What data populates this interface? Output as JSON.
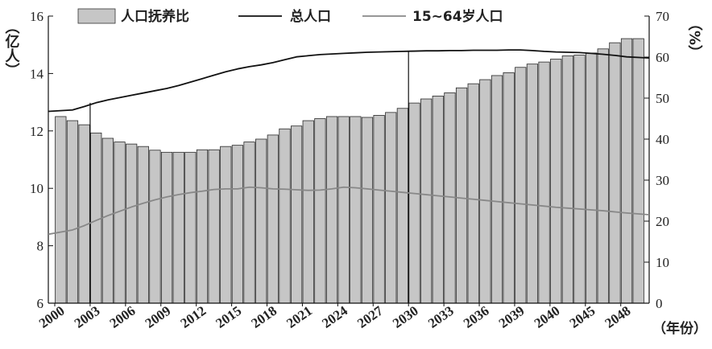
{
  "chart_data": {
    "type": "bar+line",
    "x": [
      2000,
      2001,
      2002,
      2003,
      2004,
      2005,
      2006,
      2007,
      2008,
      2009,
      2010,
      2011,
      2012,
      2013,
      2014,
      2015,
      2016,
      2017,
      2018,
      2019,
      2020,
      2021,
      2022,
      2023,
      2024,
      2025,
      2026,
      2027,
      2028,
      2029,
      2030,
      2031,
      2032,
      2033,
      2034,
      2035,
      2036,
      2037,
      2038,
      2039,
      2040,
      2041,
      2042,
      2043,
      2044,
      2045,
      2046,
      2047,
      2048,
      2049
    ],
    "x_tick_labels": [
      "2000",
      "2003",
      "2006",
      "2009",
      "2012",
      "2015",
      "2018",
      "2021",
      "2024",
      "2027",
      "2030",
      "2033",
      "2036",
      "2039",
      "2040",
      "2045",
      "2048"
    ],
    "x_unit_label": "（年份）",
    "y_left": {
      "label": "（亿人）",
      "range": [
        6,
        16
      ],
      "ticks": [
        6,
        8,
        10,
        12,
        14,
        16
      ]
    },
    "y_right": {
      "label": "（%）",
      "range": [
        0,
        70
      ],
      "ticks": [
        0,
        10,
        20,
        30,
        40,
        50,
        60,
        70
      ]
    },
    "grid": false,
    "legend_position": "top",
    "bars": {
      "name": "人口抚养比",
      "axis": "right",
      "color": "#c6c6c6",
      "values": [
        45.5,
        44.5,
        43.5,
        41.5,
        40.2,
        39.3,
        38.8,
        38.2,
        37.3,
        36.8,
        36.8,
        36.8,
        37.4,
        37.4,
        38.2,
        38.5,
        39.3,
        40,
        41,
        42.5,
        43.2,
        44.5,
        45,
        45.5,
        45.5,
        45.5,
        45.3,
        45.8,
        46.5,
        47.5,
        48.8,
        49.8,
        50.5,
        51.3,
        52.5,
        53.5,
        54.5,
        55.5,
        56.2,
        57.5,
        58.3,
        58.8,
        59.5,
        60.3,
        60.5,
        61,
        62,
        63.5,
        64.5,
        64.5
      ]
    },
    "series": [
      {
        "name": "总人口",
        "axis": "left",
        "color": "#111111",
        "values": [
          12.68,
          12.73,
          12.85,
          12.98,
          13.08,
          13.16,
          13.24,
          13.32,
          13.4,
          13.48,
          13.58,
          13.7,
          13.82,
          13.94,
          14.06,
          14.16,
          14.24,
          14.3,
          14.38,
          14.48,
          14.58,
          14.62,
          14.66,
          14.68,
          14.7,
          14.72,
          14.74,
          14.75,
          14.76,
          14.77,
          14.78,
          14.79,
          14.79,
          14.8,
          14.8,
          14.81,
          14.81,
          14.81,
          14.82,
          14.82,
          14.8,
          14.77,
          14.75,
          14.74,
          14.73,
          14.7,
          14.67,
          14.63,
          14.58,
          14.54
        ]
      },
      {
        "name": "15~64岁人口",
        "axis": "left",
        "color": "#888888",
        "values": [
          8.4,
          8.55,
          8.7,
          8.88,
          9.05,
          9.2,
          9.35,
          9.48,
          9.6,
          9.7,
          9.78,
          9.85,
          9.9,
          9.96,
          9.98,
          9.98,
          10.04,
          10.02,
          9.98,
          9.97,
          9.95,
          9.93,
          9.94,
          9.98,
          10.04,
          10.02,
          9.98,
          9.94,
          9.9,
          9.86,
          9.82,
          9.78,
          9.74,
          9.7,
          9.66,
          9.62,
          9.58,
          9.54,
          9.5,
          9.46,
          9.42,
          9.38,
          9.34,
          9.31,
          9.28,
          9.25,
          9.22,
          9.18,
          9.14,
          9.08
        ]
      }
    ]
  }
}
